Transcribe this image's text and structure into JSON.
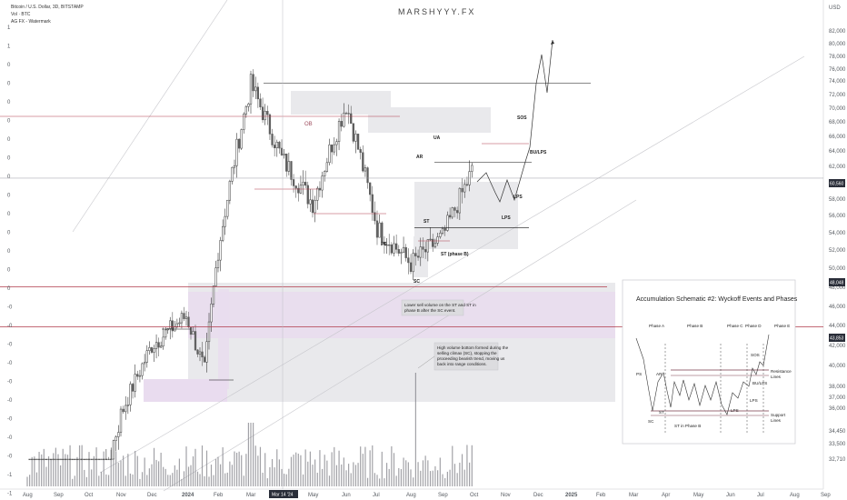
{
  "header": {
    "symbol_line": "Bitcoin / U.S. Dollar, 3D, BITSTAMP",
    "vol_line": "Vol · BTC",
    "ag_line": "AG FX - Watermark",
    "watermark": "MARSHYYY.FX",
    "currency": "USD"
  },
  "axes": {
    "y_ticks": [
      "82,000",
      "80,000",
      "78,000",
      "76,000",
      "74,000",
      "72,000",
      "70,000",
      "68,000",
      "66,000",
      "64,000",
      "62,000",
      "60,000",
      "58,000",
      "56,000",
      "54,000",
      "52,000",
      "50,000",
      "48,000",
      "46,000",
      "44,000",
      "42,000",
      "40,000",
      "38,000",
      "37,000",
      "36,000",
      "34,450",
      "33,500",
      "32,710"
    ],
    "price_badges": [
      "60,560",
      "48,048",
      "43,853"
    ],
    "x_ticks": [
      "Aug",
      "Sep",
      "Oct",
      "Nov",
      "Dec",
      "2024",
      "Feb",
      "Mar",
      "Apr",
      "May",
      "Jun",
      "Jul",
      "Aug",
      "Sep",
      "Oct",
      "Nov",
      "Dec",
      "2025",
      "Feb",
      "Mar",
      "Apr",
      "May",
      "Jun",
      "Jul",
      "Aug",
      "Sep"
    ],
    "x_highlight": "Mar 14 '24",
    "left_ticks": [
      "1",
      "1",
      "0",
      "0",
      "0",
      "0",
      "0",
      "0",
      "0",
      "0",
      "0",
      "0",
      "0",
      "0",
      "0",
      "-0",
      "-0",
      "-0",
      "-0",
      "-0",
      "-0",
      "-0",
      "-0",
      "-0",
      "-1",
      "-1",
      "2"
    ]
  },
  "labels": {
    "sos": "SOS",
    "bu_lps": "BU/LPS",
    "lps": "LPS",
    "lps2": "LPS",
    "ua": "UA",
    "ar": "AR",
    "st": "ST",
    "ps": "PS",
    "st_phase_b": "ST (phase B)",
    "sc": "SC",
    "ob": "OB"
  },
  "notes": {
    "note1_l1": "Lower sell volume on the ST and ST in",
    "note1_l2": "phase B after the SC event.",
    "note2_l1": "High volume bottom formed during the",
    "note2_l2": "selling climax (SC), stopping the",
    "note2_l3": "proceeding bearish trend, moving us",
    "note2_l4": "back into range conditions."
  },
  "inset": {
    "title": "Accumulation Schematic #2: Wyckoff Events and Phases",
    "phases": [
      "Phase A",
      "Phase B",
      "Phase C",
      "Phase D",
      "Phase E"
    ],
    "labels": {
      "ps": "PS",
      "sc": "SC",
      "ar": "AR",
      "st": "ST",
      "st_b": "ST in Phase B",
      "lps": "LPS",
      "lps2": "LPS",
      "sos": "SOS",
      "bu_lps": "BU/LPS",
      "resistance": "Resistance",
      "resistance2": "Lines",
      "support": "Support",
      "support2": "Lines"
    }
  },
  "colors": {
    "up": "#3a3a3a",
    "down": "#5e5e5e",
    "zone_purple": "#e9dcef",
    "zone_gray": "#e9e9ec",
    "red_line": "#b03a4a",
    "black_line": "#111111",
    "badge": "#2a2e39"
  },
  "chart_data": {
    "type": "candlestick",
    "instrument": "Bitcoin / U.S. Dollar, 3D, BITSTAMP",
    "ylabel": "USD",
    "ylim": [
      32710,
      82000
    ],
    "price_path_anchors": [
      {
        "t": "Aug 2023",
        "price": 29500
      },
      {
        "t": "Sep 2023",
        "price": 26500
      },
      {
        "t": "Oct 2023",
        "price": 27500
      },
      {
        "t": "Nov 2023",
        "price": 35500
      },
      {
        "t": "Dec 2023",
        "price": 42000
      },
      {
        "t": "2024",
        "price": 45000
      },
      {
        "t": "Jan 2024",
        "price": 39500
      },
      {
        "t": "Feb 2024",
        "price": 52000
      },
      {
        "t": "Mar 2024",
        "price": 73500
      },
      {
        "t": "Apr 2024",
        "price": 63000
      },
      {
        "t": "May 2024",
        "price": 57500
      },
      {
        "t": "Jun 2024",
        "price": 70500
      },
      {
        "t": "Jul 2024",
        "price": 54500
      },
      {
        "t": "Aug 2024",
        "price": 50500
      },
      {
        "t": "Sep 2024",
        "price": 53500
      },
      {
        "t": "Oct 2024",
        "price": 62000
      }
    ],
    "levels": [
      {
        "price": 73700,
        "kind": "range-high",
        "color": "#111111"
      },
      {
        "price": 60560,
        "kind": "current",
        "color": "#888888"
      },
      {
        "price": 48048,
        "kind": "resistance",
        "color": "#b03a4a"
      },
      {
        "price": 43853,
        "kind": "support",
        "color": "#b03a4a"
      },
      {
        "price": 62500,
        "kind": "AR line",
        "color": "#111111"
      },
      {
        "price": 54600,
        "kind": "SC line",
        "color": "#111111"
      }
    ],
    "projection": [
      {
        "t": "Oct 2024",
        "price": 61000
      },
      {
        "t": "Oct 2024",
        "price": 57000
      },
      {
        "t": "Nov 2024",
        "price": 61000
      },
      {
        "t": "Nov 2024",
        "price": 66000
      },
      {
        "t": "Nov 2024",
        "price": 76000
      },
      {
        "t": "Dec 2024",
        "price": 72000
      },
      {
        "t": "Dec 2024",
        "price": 81000
      }
    ]
  }
}
